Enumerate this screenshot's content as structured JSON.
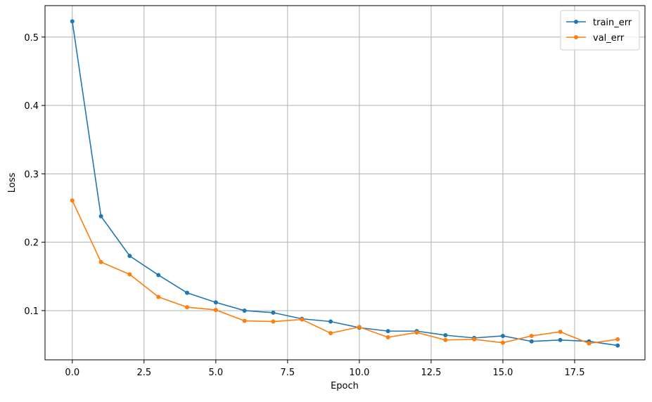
{
  "chart_data": {
    "type": "line",
    "xlabel": "Epoch",
    "ylabel": "Loss",
    "x": [
      0,
      1,
      2,
      3,
      4,
      5,
      6,
      7,
      8,
      9,
      10,
      11,
      12,
      13,
      14,
      15,
      16,
      17,
      18,
      19
    ],
    "series": [
      {
        "name": "train_err",
        "color": "#1f77b4",
        "values": [
          0.523,
          0.238,
          0.18,
          0.152,
          0.126,
          0.112,
          0.1,
          0.097,
          0.088,
          0.084,
          0.075,
          0.07,
          0.07,
          0.064,
          0.06,
          0.063,
          0.055,
          0.057,
          0.055,
          0.049
        ]
      },
      {
        "name": "val_err",
        "color": "#ff7f0e",
        "values": [
          0.261,
          0.171,
          0.153,
          0.12,
          0.105,
          0.101,
          0.085,
          0.084,
          0.087,
          0.067,
          0.076,
          0.061,
          0.068,
          0.057,
          0.058,
          0.053,
          0.063,
          0.069,
          0.052,
          0.058
        ]
      }
    ],
    "xlim": [
      -0.95,
      19.95
    ],
    "ylim": [
      0.028,
      0.546
    ],
    "xticks": [
      {
        "value": 0,
        "label": "0.0"
      },
      2.5,
      {
        "value": 5,
        "label": "5.0"
      },
      7.5,
      {
        "value": 10,
        "label": "10.0"
      },
      12.5,
      {
        "value": 15,
        "label": "15.0"
      },
      17.5
    ],
    "yticks": [
      0.1,
      0.2,
      0.3,
      0.4,
      0.5
    ],
    "grid": true,
    "legend": "upper right"
  }
}
